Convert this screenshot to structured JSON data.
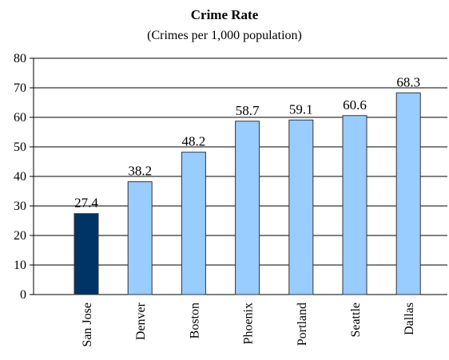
{
  "chart_data": {
    "type": "bar",
    "title": "Crime Rate",
    "subtitle": "(Crimes per 1,000 population)",
    "xlabel": "",
    "ylabel": "",
    "categories": [
      "San Jose",
      "Denver",
      "Boston",
      "Phoenix",
      "Portland",
      "Seattle",
      "Dallas"
    ],
    "values": [
      27.4,
      38.2,
      48.2,
      58.7,
      59.1,
      60.6,
      68.3
    ],
    "value_labels": [
      "27.4",
      "38.2",
      "48.2",
      "58.7",
      "59.1",
      "60.6",
      "68.3"
    ],
    "highlight_index": 0,
    "ylim": [
      0,
      80
    ],
    "yticks": [
      0,
      10,
      20,
      30,
      40,
      50,
      60,
      70,
      80
    ],
    "grid": true,
    "legend": "none",
    "colors": {
      "bar": "#99ccff",
      "bar_highlight": "#003366",
      "bar_stroke": "#333333",
      "grid": "#000000",
      "axis": "#000000"
    }
  }
}
